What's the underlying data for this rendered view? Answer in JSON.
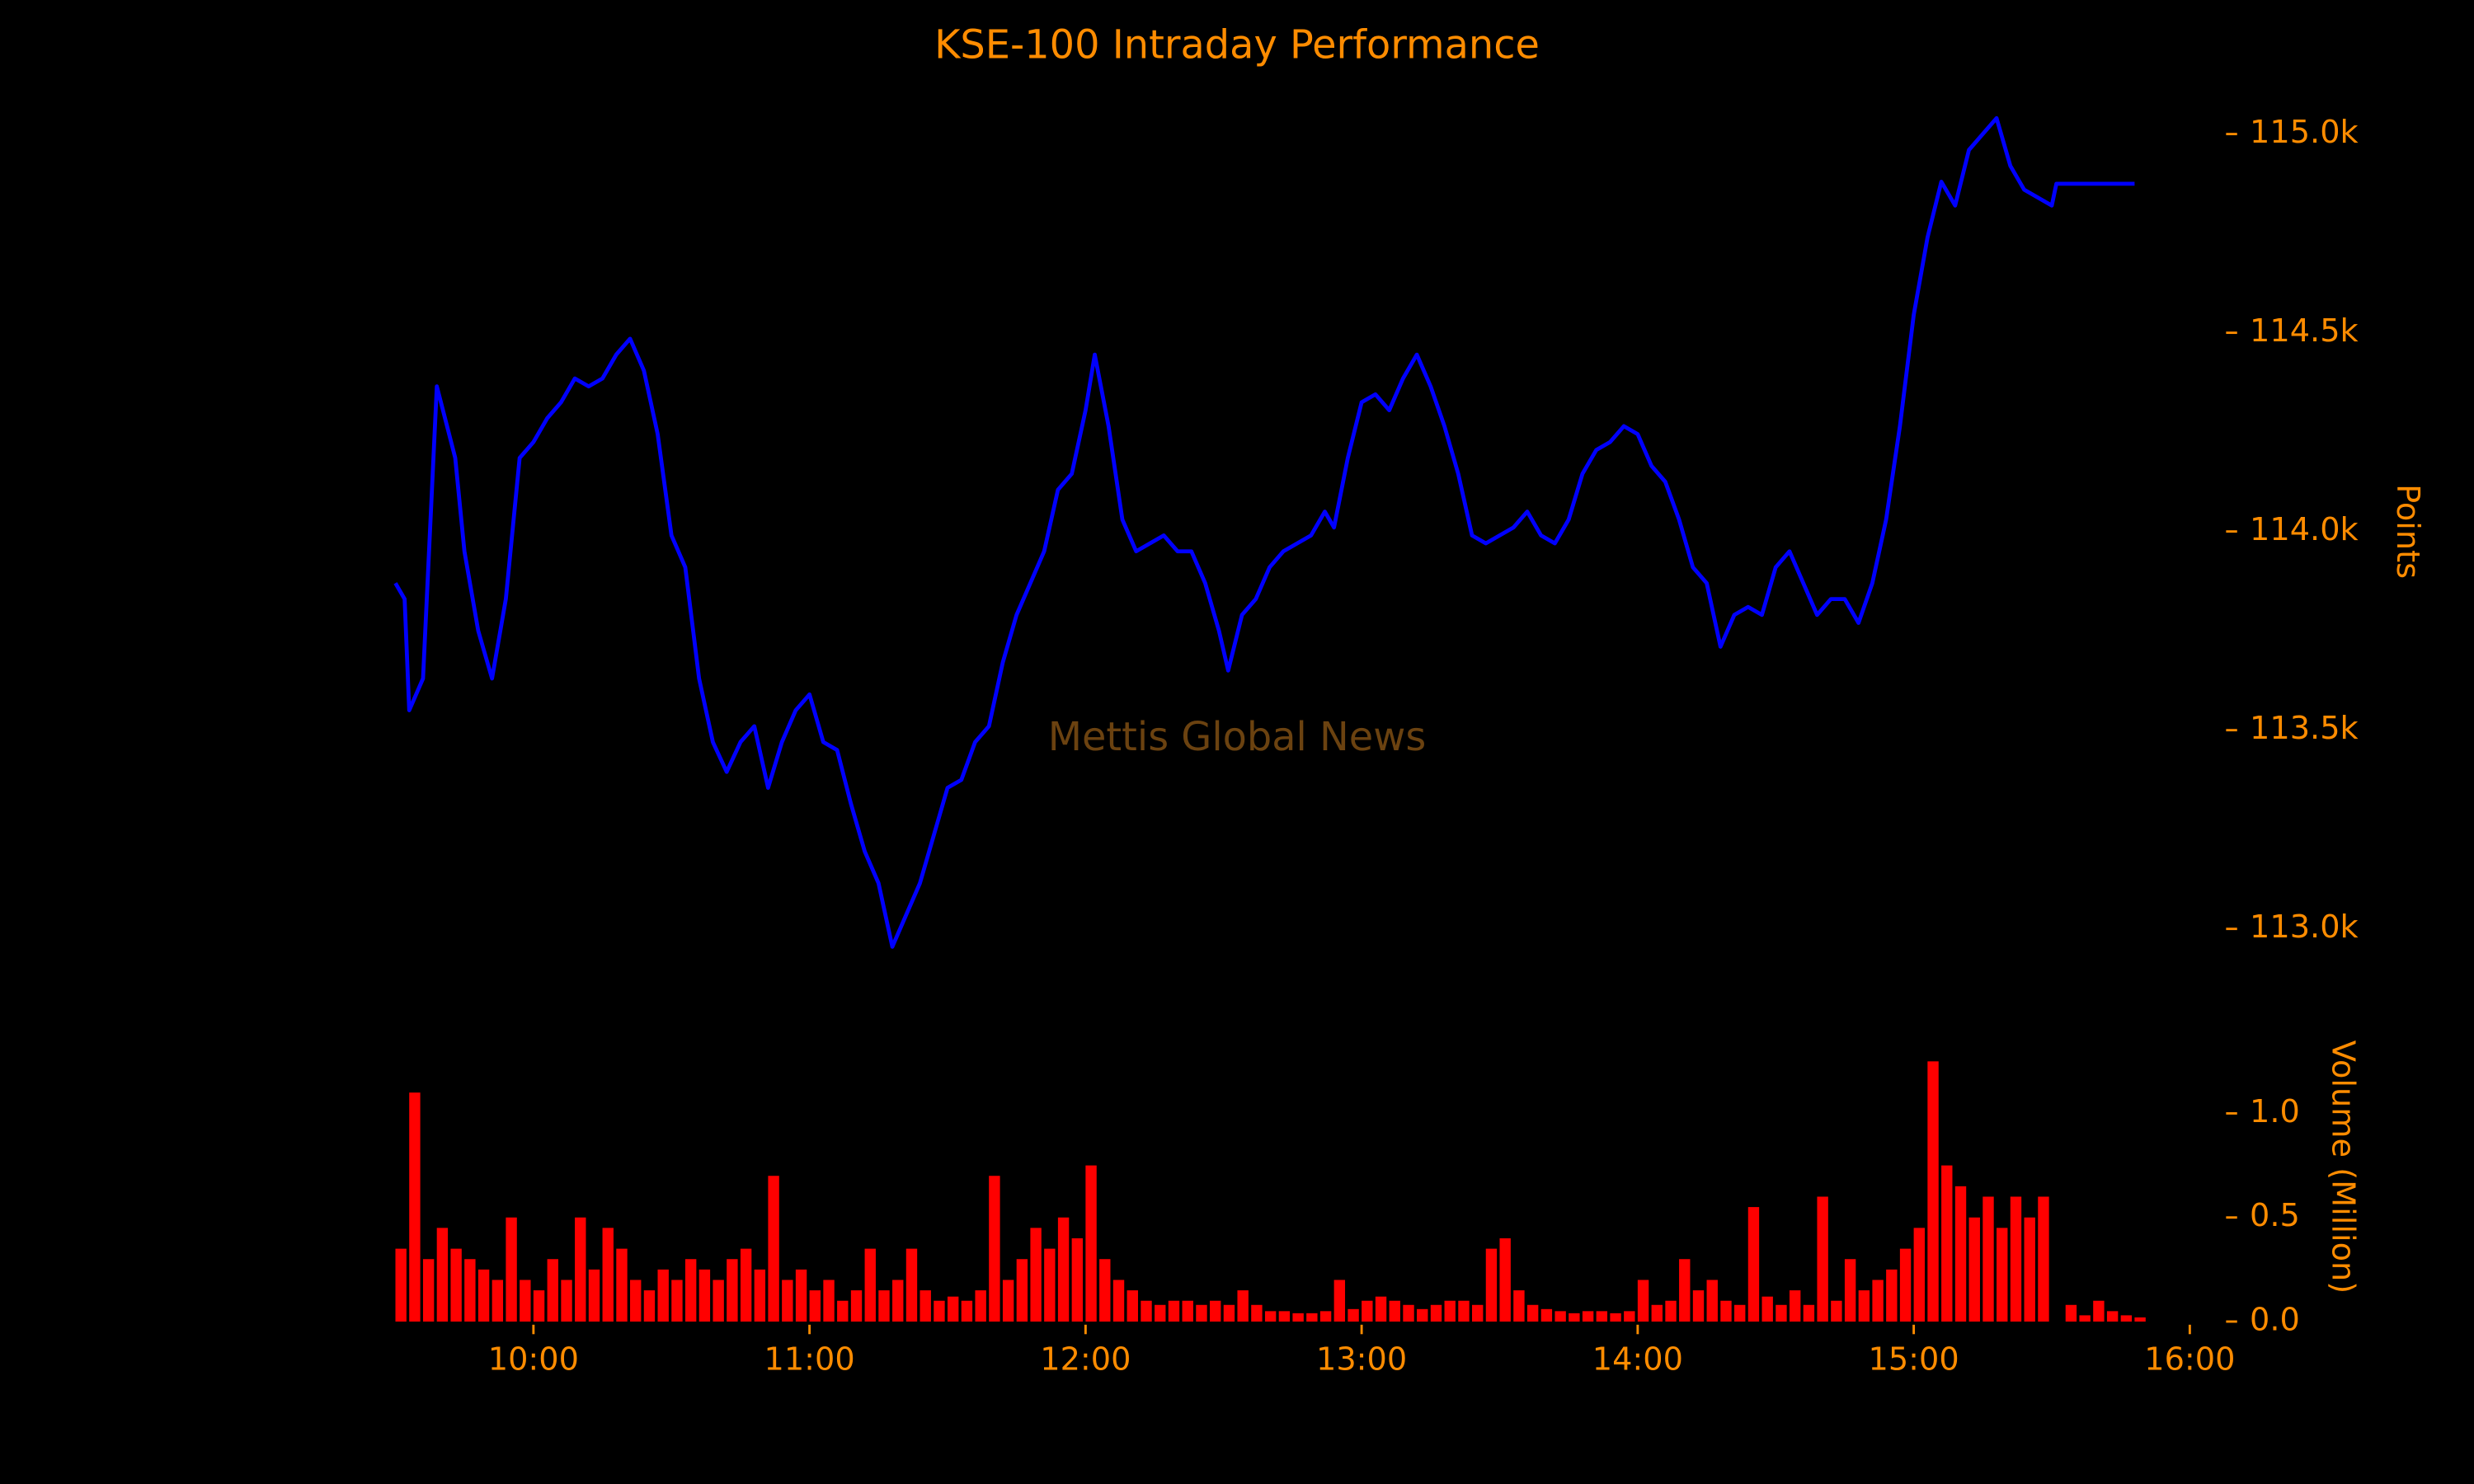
{
  "chart_data": [
    {
      "type": "line",
      "title": "KSE-100 Intraday Performance",
      "ylabel": "Points",
      "annotation": "Mettis Global News",
      "color": "#0000ff",
      "x": [
        "09:30",
        "09:32",
        "09:33",
        "09:36",
        "09:39",
        "09:43",
        "09:45",
        "09:48",
        "09:51",
        "09:54",
        "09:57",
        "10:00",
        "10:03",
        "10:06",
        "10:09",
        "10:12",
        "10:15",
        "10:18",
        "10:21",
        "10:24",
        "10:27",
        "10:30",
        "10:33",
        "10:36",
        "10:39",
        "10:42",
        "10:45",
        "10:48",
        "10:51",
        "10:54",
        "10:57",
        "11:00",
        "11:03",
        "11:06",
        "11:09",
        "11:12",
        "11:15",
        "11:18",
        "11:21",
        "11:24",
        "11:27",
        "11:30",
        "11:33",
        "11:36",
        "11:39",
        "11:42",
        "11:45",
        "11:48",
        "11:51",
        "11:54",
        "11:57",
        "12:00",
        "12:02",
        "12:05",
        "12:08",
        "12:11",
        "12:14",
        "12:17",
        "12:20",
        "12:23",
        "12:26",
        "12:29",
        "12:31",
        "12:34",
        "12:37",
        "12:40",
        "12:43",
        "12:46",
        "12:49",
        "12:52",
        "12:54",
        "12:57",
        "13:00",
        "13:03",
        "13:06",
        "13:09",
        "13:12",
        "13:15",
        "13:18",
        "13:21",
        "13:24",
        "13:27",
        "13:30",
        "13:33",
        "13:36",
        "13:39",
        "13:42",
        "13:45",
        "13:48",
        "13:51",
        "13:54",
        "13:57",
        "14:00",
        "14:03",
        "14:06",
        "14:09",
        "14:12",
        "14:15",
        "14:18",
        "14:21",
        "14:24",
        "14:27",
        "14:30",
        "14:33",
        "14:36",
        "14:39",
        "14:42",
        "14:45",
        "14:48",
        "14:51",
        "14:54",
        "14:57",
        "15:00",
        "15:03",
        "15:06",
        "15:09",
        "15:12",
        "15:15",
        "15:18",
        "15:21",
        "15:24",
        "15:27",
        "15:30",
        "15:31",
        "15:48"
      ],
      "values": [
        113870,
        113830,
        113550,
        113630,
        114365,
        114185,
        113950,
        113750,
        113630,
        113830,
        114185,
        114225,
        114285,
        114325,
        114385,
        114365,
        114385,
        114445,
        114485,
        114405,
        114245,
        113990,
        113910,
        113630,
        113470,
        113395,
        113470,
        113510,
        113355,
        113470,
        113550,
        113590,
        113470,
        113450,
        113315,
        113195,
        113115,
        112955,
        113035,
        113115,
        113235,
        113355,
        113375,
        113470,
        113510,
        113670,
        113790,
        113870,
        113950,
        114105,
        114145,
        114305,
        114445,
        114265,
        114030,
        113950,
        113970,
        113990,
        113950,
        113950,
        113870,
        113750,
        113650,
        113790,
        113830,
        113910,
        113950,
        113970,
        113990,
        114050,
        114010,
        114185,
        114325,
        114345,
        114305,
        114385,
        114445,
        114365,
        114265,
        114145,
        113990,
        113970,
        113990,
        114010,
        114050,
        113990,
        113970,
        114030,
        114145,
        114205,
        114225,
        114265,
        114245,
        114165,
        114125,
        114030,
        113910,
        113870,
        113710,
        113790,
        113810,
        113790,
        113910,
        113950,
        113870,
        113790,
        113830,
        113830,
        113770,
        113870,
        114030,
        114265,
        114545,
        114740,
        114880,
        114820,
        114960,
        115000,
        115040,
        114920,
        114860,
        114840,
        114820,
        114875,
        114875
      ],
      "ylim": [
        112900,
        115100
      ],
      "yticks": [
        {
          "value": 113000,
          "label": "113.0k"
        },
        {
          "value": 113500,
          "label": "113.5k"
        },
        {
          "value": 114000,
          "label": "114.0k"
        },
        {
          "value": 114500,
          "label": "114.5k"
        },
        {
          "value": 115000,
          "label": "115.0k"
        }
      ],
      "xlim": [
        "09:30",
        "16:00"
      ]
    },
    {
      "type": "bar",
      "ylabel": "Volume (Million)",
      "color": "#ff0000",
      "x": [
        "09:30",
        "09:33",
        "09:36",
        "09:39",
        "09:42",
        "09:45",
        "09:48",
        "09:51",
        "09:54",
        "09:57",
        "10:00",
        "10:03",
        "10:06",
        "10:09",
        "10:12",
        "10:15",
        "10:18",
        "10:21",
        "10:24",
        "10:27",
        "10:30",
        "10:33",
        "10:36",
        "10:39",
        "10:42",
        "10:45",
        "10:48",
        "10:51",
        "10:54",
        "10:57",
        "11:00",
        "11:03",
        "11:06",
        "11:09",
        "11:12",
        "11:15",
        "11:18",
        "11:21",
        "11:24",
        "11:27",
        "11:30",
        "11:33",
        "11:36",
        "11:39",
        "11:42",
        "11:45",
        "11:48",
        "11:51",
        "11:54",
        "11:57",
        "12:00",
        "12:03",
        "12:06",
        "12:09",
        "12:12",
        "12:15",
        "12:18",
        "12:21",
        "12:24",
        "12:27",
        "12:30",
        "12:33",
        "12:36",
        "12:39",
        "12:42",
        "12:45",
        "12:48",
        "12:51",
        "12:54",
        "12:57",
        "13:00",
        "13:03",
        "13:06",
        "13:09",
        "13:12",
        "13:15",
        "13:18",
        "13:21",
        "13:24",
        "13:27",
        "13:30",
        "13:33",
        "13:36",
        "13:39",
        "13:42",
        "13:45",
        "13:48",
        "13:51",
        "13:54",
        "13:57",
        "14:00",
        "14:03",
        "14:06",
        "14:09",
        "14:12",
        "14:15",
        "14:18",
        "14:21",
        "14:24",
        "14:27",
        "14:30",
        "14:33",
        "14:36",
        "14:39",
        "14:42",
        "14:45",
        "14:48",
        "14:51",
        "14:54",
        "14:57",
        "15:00",
        "15:03",
        "15:06",
        "15:09",
        "15:12",
        "15:15",
        "15:18",
        "15:21",
        "15:24",
        "15:27",
        "15:33",
        "15:36",
        "15:39",
        "15:42",
        "15:45",
        "15:48"
      ],
      "values": [
        0.35,
        1.1,
        0.3,
        0.45,
        0.35,
        0.3,
        0.25,
        0.2,
        0.5,
        0.2,
        0.15,
        0.3,
        0.2,
        0.5,
        0.25,
        0.45,
        0.35,
        0.2,
        0.15,
        0.25,
        0.2,
        0.3,
        0.25,
        0.2,
        0.3,
        0.35,
        0.25,
        0.7,
        0.2,
        0.25,
        0.15,
        0.2,
        0.1,
        0.15,
        0.35,
        0.15,
        0.2,
        0.35,
        0.15,
        0.1,
        0.12,
        0.1,
        0.15,
        0.7,
        0.2,
        0.3,
        0.45,
        0.35,
        0.5,
        0.4,
        0.75,
        0.3,
        0.2,
        0.15,
        0.1,
        0.08,
        0.1,
        0.1,
        0.08,
        0.1,
        0.08,
        0.15,
        0.08,
        0.05,
        0.05,
        0.04,
        0.04,
        0.05,
        0.2,
        0.06,
        0.1,
        0.12,
        0.1,
        0.08,
        0.06,
        0.08,
        0.1,
        0.1,
        0.08,
        0.35,
        0.4,
        0.15,
        0.08,
        0.06,
        0.05,
        0.04,
        0.05,
        0.05,
        0.04,
        0.05,
        0.2,
        0.08,
        0.1,
        0.3,
        0.15,
        0.2,
        0.1,
        0.08,
        0.55,
        0.12,
        0.08,
        0.15,
        0.08,
        0.6,
        0.1,
        0.3,
        0.15,
        0.2,
        0.25,
        0.35,
        0.45,
        1.25,
        0.75,
        0.65,
        0.5,
        0.6,
        0.45,
        0.6,
        0.5,
        0.6,
        0.08,
        0.03,
        0.1,
        0.05,
        0.03,
        0.02
      ],
      "ylim": [
        0,
        1.4
      ],
      "yticks": [
        {
          "value": 0,
          "label": "0.0"
        },
        0.5,
        {
          "value": 1,
          "label": "1.0"
        }
      ],
      "xlim": [
        "09:30",
        "16:00"
      ],
      "xticks": [
        "10:00",
        "11:00",
        "12:00",
        "13:00",
        "14:00",
        "15:00",
        "16:00"
      ]
    }
  ]
}
